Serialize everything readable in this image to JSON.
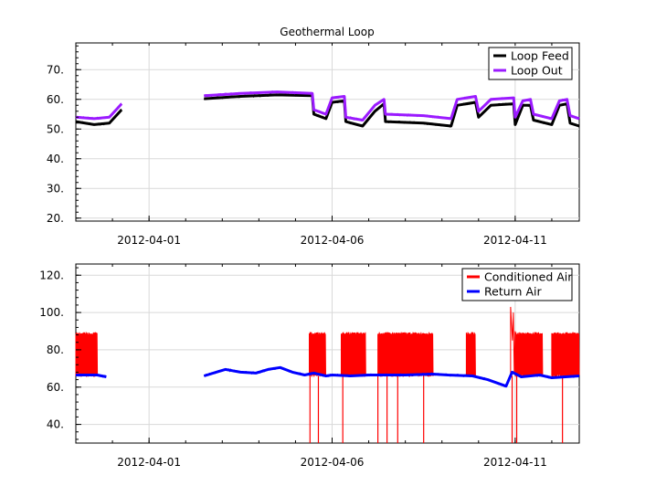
{
  "chart_data": [
    {
      "type": "line",
      "title": "Geothermal Loop",
      "x_unit": "date",
      "xlim": [
        "2012-03-30T00:00",
        "2012-04-12T18:00"
      ],
      "xticks": [
        "2012-04-01",
        "2012-04-06",
        "2012-04-11"
      ],
      "ylim": [
        19,
        79
      ],
      "yticks": [
        20,
        30,
        40,
        50,
        60,
        70
      ],
      "ytick_labels": [
        "20.",
        "30.",
        "40.",
        "50.",
        "60.",
        "70."
      ],
      "grid": true,
      "legend": "top-right",
      "series": [
        {
          "name": "Loop Feed",
          "color": "#000000",
          "points": [
            [
              "2012-03-30T00:00",
              52.5
            ],
            [
              "2012-03-30T12:00",
              51.5
            ],
            [
              "2012-03-30T22:00",
              52
            ],
            [
              "2012-03-31T06:00",
              56.5
            ],
            [
              "2012-04-02T12:00",
              60.2
            ],
            [
              "2012-04-03T12:00",
              61
            ],
            [
              "2012-04-04T12:00",
              61.5
            ],
            [
              "2012-04-05T11:00",
              61.2
            ],
            [
              "2012-04-05T12:00",
              55
            ],
            [
              "2012-04-05T20:00",
              53.5
            ],
            [
              "2012-04-06T00:00",
              59
            ],
            [
              "2012-04-06T08:00",
              59.5
            ],
            [
              "2012-04-06T09:00",
              52.5
            ],
            [
              "2012-04-06T20:00",
              51
            ],
            [
              "2012-04-07T04:00",
              56
            ],
            [
              "2012-04-07T10:00",
              58.5
            ],
            [
              "2012-04-07T11:00",
              52.5
            ],
            [
              "2012-04-08T12:00",
              52
            ],
            [
              "2012-04-09T06:00",
              51
            ],
            [
              "2012-04-09T10:00",
              58
            ],
            [
              "2012-04-09T22:00",
              59
            ],
            [
              "2012-04-10T00:00",
              54
            ],
            [
              "2012-04-10T08:00",
              58
            ],
            [
              "2012-04-10T23:00",
              58.5
            ],
            [
              "2012-04-11T00:00",
              51.5
            ],
            [
              "2012-04-11T05:00",
              58
            ],
            [
              "2012-04-11T10:00",
              58
            ],
            [
              "2012-04-11T12:00",
              53
            ],
            [
              "2012-04-12T00:00",
              51.5
            ],
            [
              "2012-04-12T05:00",
              58
            ],
            [
              "2012-04-12T10:00",
              58.5
            ],
            [
              "2012-04-12T12:00",
              52
            ],
            [
              "2012-04-12T18:00",
              51
            ]
          ]
        },
        {
          "name": "Loop Out",
          "color": "#9b1bff",
          "points": [
            [
              "2012-03-30T00:00",
              54
            ],
            [
              "2012-03-30T12:00",
              53.5
            ],
            [
              "2012-03-30T22:00",
              54
            ],
            [
              "2012-03-31T06:00",
              58.5
            ],
            [
              "2012-04-02T12:00",
              61.2
            ],
            [
              "2012-04-03T12:00",
              62
            ],
            [
              "2012-04-04T12:00",
              62.5
            ],
            [
              "2012-04-05T11:00",
              62
            ],
            [
              "2012-04-05T12:00",
              56.5
            ],
            [
              "2012-04-05T20:00",
              55
            ],
            [
              "2012-04-06T00:00",
              60.5
            ],
            [
              "2012-04-06T08:00",
              61
            ],
            [
              "2012-04-06T09:00",
              54
            ],
            [
              "2012-04-06T20:00",
              53
            ],
            [
              "2012-04-07T04:00",
              58
            ],
            [
              "2012-04-07T10:00",
              60
            ],
            [
              "2012-04-07T11:00",
              55
            ],
            [
              "2012-04-08T12:00",
              54.5
            ],
            [
              "2012-04-09T06:00",
              53.5
            ],
            [
              "2012-04-09T10:00",
              60
            ],
            [
              "2012-04-09T22:00",
              61
            ],
            [
              "2012-04-10T00:00",
              56
            ],
            [
              "2012-04-10T08:00",
              60
            ],
            [
              "2012-04-10T23:00",
              60.5
            ],
            [
              "2012-04-11T00:00",
              54
            ],
            [
              "2012-04-11T05:00",
              59.5
            ],
            [
              "2012-04-11T10:00",
              60
            ],
            [
              "2012-04-11T12:00",
              55
            ],
            [
              "2012-04-12T00:00",
              53.5
            ],
            [
              "2012-04-12T05:00",
              59.5
            ],
            [
              "2012-04-12T10:00",
              60
            ],
            [
              "2012-04-12T12:00",
              54.5
            ],
            [
              "2012-04-12T18:00",
              53.5
            ]
          ]
        }
      ]
    },
    {
      "type": "line",
      "title": "",
      "x_unit": "date",
      "xlim": [
        "2012-03-30T00:00",
        "2012-04-12T18:00"
      ],
      "xticks": [
        "2012-04-01",
        "2012-04-06",
        "2012-04-11"
      ],
      "ylim": [
        30,
        126
      ],
      "yticks": [
        40,
        60,
        80,
        100,
        120
      ],
      "ytick_labels": [
        "40.",
        "60.",
        "80.",
        "100.",
        "120."
      ],
      "grid": true,
      "legend": "top-right",
      "series": [
        {
          "name": "Conditioned Air",
          "color": "#ff0000",
          "cycling_blocks": [
            {
              "start": "2012-03-30T00:00",
              "end": "2012-03-30T14:00",
              "low": 66,
              "high": 89
            },
            {
              "start": "2012-04-05T09:00",
              "end": "2012-04-05T20:00",
              "low": 66,
              "high": 89
            },
            {
              "start": "2012-04-06T06:00",
              "end": "2012-04-06T22:00",
              "low": 66,
              "high": 89
            },
            {
              "start": "2012-04-07T06:00",
              "end": "2012-04-08T18:00",
              "low": 66,
              "high": 89
            },
            {
              "start": "2012-04-09T16:00",
              "end": "2012-04-09T22:00",
              "low": 66,
              "high": 89
            },
            {
              "start": "2012-04-11T00:00",
              "end": "2012-04-11T18:00",
              "low": 66,
              "high": 89
            },
            {
              "start": "2012-04-12T00:00",
              "end": "2012-04-12T18:00",
              "low": 66,
              "high": 89
            }
          ],
          "spikes_down": [
            "2012-04-05T09:30",
            "2012-04-05T15:00",
            "2012-04-06T07:00",
            "2012-04-07T06:00",
            "2012-04-07T12:00",
            "2012-04-07T19:00",
            "2012-04-08T12:00",
            "2012-04-10T22:00",
            "2012-04-11T01:00",
            "2012-04-12T07:00"
          ],
          "spike_low": 30,
          "peak": {
            "x": "2012-04-10T21:00",
            "y": 103
          }
        },
        {
          "name": "Return Air",
          "color": "#0000ff",
          "points": [
            [
              "2012-03-30T00:00",
              66.5
            ],
            [
              "2012-03-30T14:00",
              66.5
            ],
            [
              "2012-03-30T20:00",
              65.5
            ],
            [
              "2012-04-02T12:00",
              66
            ],
            [
              "2012-04-02T20:00",
              68
            ],
            [
              "2012-04-03T02:00",
              69.5
            ],
            [
              "2012-04-03T12:00",
              68
            ],
            [
              "2012-04-03T22:00",
              67.5
            ],
            [
              "2012-04-04T06:00",
              69.5
            ],
            [
              "2012-04-04T14:00",
              70.5
            ],
            [
              "2012-04-04T22:00",
              68
            ],
            [
              "2012-04-05T06:00",
              66.5
            ],
            [
              "2012-04-05T12:00",
              67.5
            ],
            [
              "2012-04-05T20:00",
              66
            ],
            [
              "2012-04-06T00:00",
              66.5
            ],
            [
              "2012-04-06T12:00",
              66
            ],
            [
              "2012-04-07T00:00",
              66.5
            ],
            [
              "2012-04-08T00:00",
              66.5
            ],
            [
              "2012-04-08T18:00",
              67
            ],
            [
              "2012-04-09T04:00",
              66.5
            ],
            [
              "2012-04-09T20:00",
              66
            ],
            [
              "2012-04-10T06:00",
              64
            ],
            [
              "2012-04-10T18:00",
              60.5
            ],
            [
              "2012-04-10T22:00",
              68
            ],
            [
              "2012-04-11T04:00",
              65.5
            ],
            [
              "2012-04-11T16:00",
              66.5
            ],
            [
              "2012-04-12T00:00",
              65
            ],
            [
              "2012-04-12T18:00",
              66
            ]
          ]
        }
      ]
    }
  ]
}
